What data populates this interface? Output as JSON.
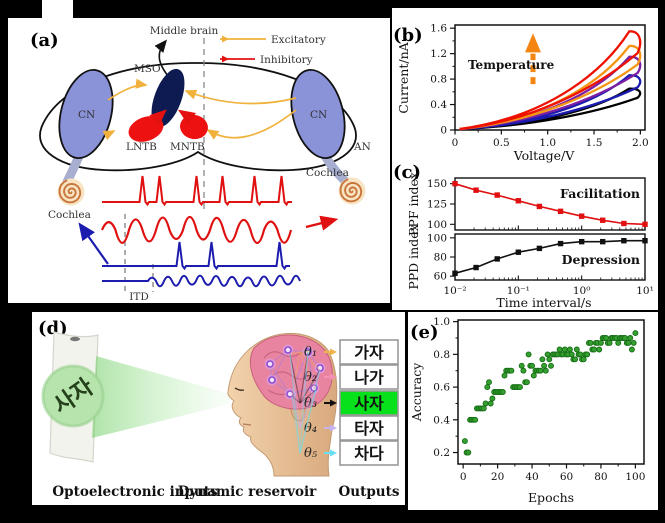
{
  "panels": {
    "a": {
      "label": "(a)",
      "middle_brain": "Middle brain",
      "legend": {
        "excitatory": "Excitatory",
        "inhibitory": "Inhibitory"
      },
      "cn_left": "CN",
      "cn_right": "CN",
      "mso": "MSO",
      "lntb": "LNTB",
      "mntb": "MNTB",
      "an": "AN",
      "cochlea_left": "Cochlea",
      "cochlea_right": "Cochlea",
      "itd": "ITD",
      "colors": {
        "excitatory": "#f0b23c",
        "inhibitory": "#e41111",
        "cn_fill": "#8a92d8",
        "mso_fill": "#0d1b52",
        "nerve": "#a7aed0",
        "signal_red": "#e01010",
        "signal_blue": "#1c1cae",
        "cochlea": "#c8763c"
      }
    },
    "b": {
      "label": "(b)",
      "xlabel": "Voltage/V",
      "ylabel": "Current/nA",
      "annotation": "Temperature",
      "annotation_color": "#2d2da0",
      "arrow_color": "#f58513"
    },
    "c": {
      "label": "(c)",
      "xlabel": "Time interval/s",
      "ylabel_top": "PPF index",
      "ylabel_bottom": "PPD index",
      "label_top": "Facilitation",
      "label_bottom": "Depression",
      "label_top_color": "#e01010",
      "label_bottom_color": "#111111"
    },
    "d": {
      "label": "(d)",
      "input_word": "사자",
      "captions": {
        "inputs": "Optoelectronic inputs",
        "reservoir": "Dynamic reservoir",
        "outputs": "Outputs",
        "inputs_color": "#28288c",
        "reservoir_color": "#c53a3a",
        "outputs_color": "#28288c"
      },
      "outputs": [
        {
          "theta": "θ₁",
          "word": "가자",
          "color": "#f0b24a",
          "box_bg": "#ffffff"
        },
        {
          "theta": "θ₂",
          "word": "나가",
          "color": "#f390b4",
          "box_bg": "#ffffff"
        },
        {
          "theta": "θ₃",
          "word": "사자",
          "color": "#101010",
          "box_bg": "#07e11c"
        },
        {
          "theta": "θ₄",
          "word": "타자",
          "color": "#c7b2f0",
          "box_bg": "#ffffff"
        },
        {
          "theta": "θ₅",
          "word": "차다",
          "color": "#66dff0",
          "box_bg": "#ffffff"
        }
      ]
    },
    "e": {
      "label": "(e)",
      "xlabel": "Epochs",
      "ylabel": "Accuracy"
    }
  },
  "chart_data": [
    {
      "id": "iv_loops",
      "type": "line",
      "panel": "b",
      "title": "",
      "xlabel": "Voltage/V",
      "ylabel": "Current/nA",
      "xlim": [
        0,
        2.05
      ],
      "ylim": [
        0,
        1.65
      ],
      "xticks": [
        0,
        0.5,
        1.0,
        1.5,
        2.0
      ],
      "xtick_labels": [
        "0",
        "0.5",
        "1.0",
        "1.5",
        "2.0"
      ],
      "yticks": [
        0,
        0.4,
        0.8,
        1.2,
        1.6
      ],
      "ytick_labels": [
        "0",
        "0.4",
        "0.8",
        "1.2",
        "1.6"
      ],
      "annotation": "Temperature",
      "note": "pinched hysteresis I-V loops, current peak grows with temperature",
      "series": [
        {
          "name": "lowest temperature",
          "color": "#000000",
          "peak_nA": 0.65
        },
        {
          "name": "low temperature",
          "color": "#1b1bb0",
          "peak_nA": 0.86
        },
        {
          "name": "middle temperature",
          "color": "#7d1fa2",
          "peak_nA": 1.15
        },
        {
          "name": "high temperature",
          "color": "#f59514",
          "peak_nA": 1.32
        },
        {
          "name": "highest temperature",
          "color": "#ee1100",
          "peak_nA": 1.55
        }
      ]
    },
    {
      "id": "ppf",
      "type": "line",
      "panel": "c-top",
      "ylabel": "PPF index",
      "label": "Facilitation",
      "color": "#e01010",
      "x": [
        0.01,
        0.0215,
        0.0464,
        0.1,
        0.215,
        0.464,
        1,
        2.15,
        4.64,
        10
      ],
      "values": [
        150,
        142,
        136,
        129,
        122,
        116,
        110,
        105,
        101,
        100
      ],
      "yticks": [
        100,
        125,
        150
      ],
      "ytick_labels": [
        "100",
        "125",
        "150"
      ],
      "ylim": [
        93,
        157
      ],
      "xscale": "log",
      "xlim": [
        0.01,
        10
      ]
    },
    {
      "id": "ppd",
      "type": "line",
      "panel": "c-bottom",
      "ylabel": "PPD index",
      "xlabel": "Time interval/s",
      "label": "Depression",
      "color": "#111111",
      "x": [
        0.01,
        0.0215,
        0.0464,
        0.1,
        0.215,
        0.464,
        1,
        2.15,
        4.64,
        10
      ],
      "values": [
        63,
        69,
        78,
        85,
        89,
        94,
        96,
        96,
        97,
        97
      ],
      "yticks": [
        60,
        80,
        100
      ],
      "ytick_labels": [
        "60",
        "80",
        "100"
      ],
      "ylim": [
        56,
        104
      ],
      "xscale": "log",
      "xlim": [
        0.01,
        10
      ],
      "xtick_labels": [
        "10⁻²",
        "10⁻¹",
        "10⁰",
        "10¹"
      ]
    },
    {
      "id": "accuracy",
      "type": "scatter",
      "panel": "e",
      "xlabel": "Epochs",
      "ylabel": "Accuracy",
      "color": "#35a02f",
      "xlim": [
        0,
        100
      ],
      "ylim": [
        0.13,
        1.0
      ],
      "xticks": [
        0,
        20,
        40,
        60,
        80,
        100
      ],
      "xtick_labels": [
        "0",
        "20",
        "40",
        "60",
        "80",
        "100"
      ],
      "yticks": [
        0.2,
        0.4,
        0.6,
        0.8,
        1.0
      ],
      "ytick_labels": [
        "0.2",
        "0.4",
        "0.6",
        "0.8",
        "1.0"
      ],
      "points": [
        [
          1,
          0.27
        ],
        [
          2,
          0.2
        ],
        [
          3,
          0.2
        ],
        [
          4,
          0.4
        ],
        [
          5,
          0.4
        ],
        [
          6,
          0.4
        ],
        [
          7,
          0.4
        ],
        [
          8,
          0.47
        ],
        [
          9,
          0.47
        ],
        [
          10,
          0.47
        ],
        [
          11,
          0.47
        ],
        [
          12,
          0.47
        ],
        [
          13,
          0.5
        ],
        [
          14,
          0.6
        ],
        [
          15,
          0.63
        ],
        [
          16,
          0.5
        ],
        [
          17,
          0.53
        ],
        [
          18,
          0.57
        ],
        [
          19,
          0.57
        ],
        [
          20,
          0.57
        ],
        [
          21,
          0.57
        ],
        [
          22,
          0.57
        ],
        [
          23,
          0.57
        ],
        [
          24,
          0.67
        ],
        [
          25,
          0.7
        ],
        [
          26,
          0.7
        ],
        [
          27,
          0.7
        ],
        [
          28,
          0.7
        ],
        [
          29,
          0.6
        ],
        [
          30,
          0.6
        ],
        [
          31,
          0.6
        ],
        [
          32,
          0.6
        ],
        [
          33,
          0.6
        ],
        [
          34,
          0.73
        ],
        [
          35,
          0.7
        ],
        [
          36,
          0.63
        ],
        [
          37,
          0.63
        ],
        [
          38,
          0.8
        ],
        [
          39,
          0.73
        ],
        [
          40,
          0.73
        ],
        [
          41,
          0.67
        ],
        [
          42,
          0.7
        ],
        [
          43,
          0.7
        ],
        [
          44,
          0.7
        ],
        [
          45,
          0.7
        ],
        [
          46,
          0.77
        ],
        [
          47,
          0.73
        ],
        [
          48,
          0.7
        ],
        [
          49,
          0.8
        ],
        [
          50,
          0.77
        ],
        [
          51,
          0.73
        ],
        [
          52,
          0.8
        ],
        [
          53,
          0.8
        ],
        [
          54,
          0.8
        ],
        [
          55,
          0.8
        ],
        [
          56,
          0.83
        ],
        [
          57,
          0.8
        ],
        [
          58,
          0.8
        ],
        [
          59,
          0.83
        ],
        [
          60,
          0.8
        ],
        [
          61,
          0.8
        ],
        [
          62,
          0.83
        ],
        [
          63,
          0.8
        ],
        [
          64,
          0.77
        ],
        [
          65,
          0.77
        ],
        [
          66,
          0.83
        ],
        [
          67,
          0.8
        ],
        [
          68,
          0.8
        ],
        [
          69,
          0.77
        ],
        [
          70,
          0.77
        ],
        [
          71,
          0.8
        ],
        [
          72,
          0.8
        ],
        [
          73,
          0.87
        ],
        [
          74,
          0.87
        ],
        [
          75,
          0.83
        ],
        [
          76,
          0.83
        ],
        [
          77,
          0.87
        ],
        [
          78,
          0.87
        ],
        [
          79,
          0.83
        ],
        [
          80,
          0.87
        ],
        [
          81,
          0.9
        ],
        [
          82,
          0.9
        ],
        [
          83,
          0.9
        ],
        [
          84,
          0.87
        ],
        [
          85,
          0.87
        ],
        [
          86,
          0.9
        ],
        [
          87,
          0.9
        ],
        [
          88,
          0.9
        ],
        [
          89,
          0.9
        ],
        [
          90,
          0.87
        ],
        [
          91,
          0.9
        ],
        [
          92,
          0.9
        ],
        [
          93,
          0.9
        ],
        [
          94,
          0.9
        ],
        [
          95,
          0.87
        ],
        [
          96,
          0.87
        ],
        [
          97,
          0.9
        ],
        [
          98,
          0.83
        ],
        [
          99,
          0.87
        ],
        [
          100,
          0.93
        ]
      ]
    }
  ]
}
